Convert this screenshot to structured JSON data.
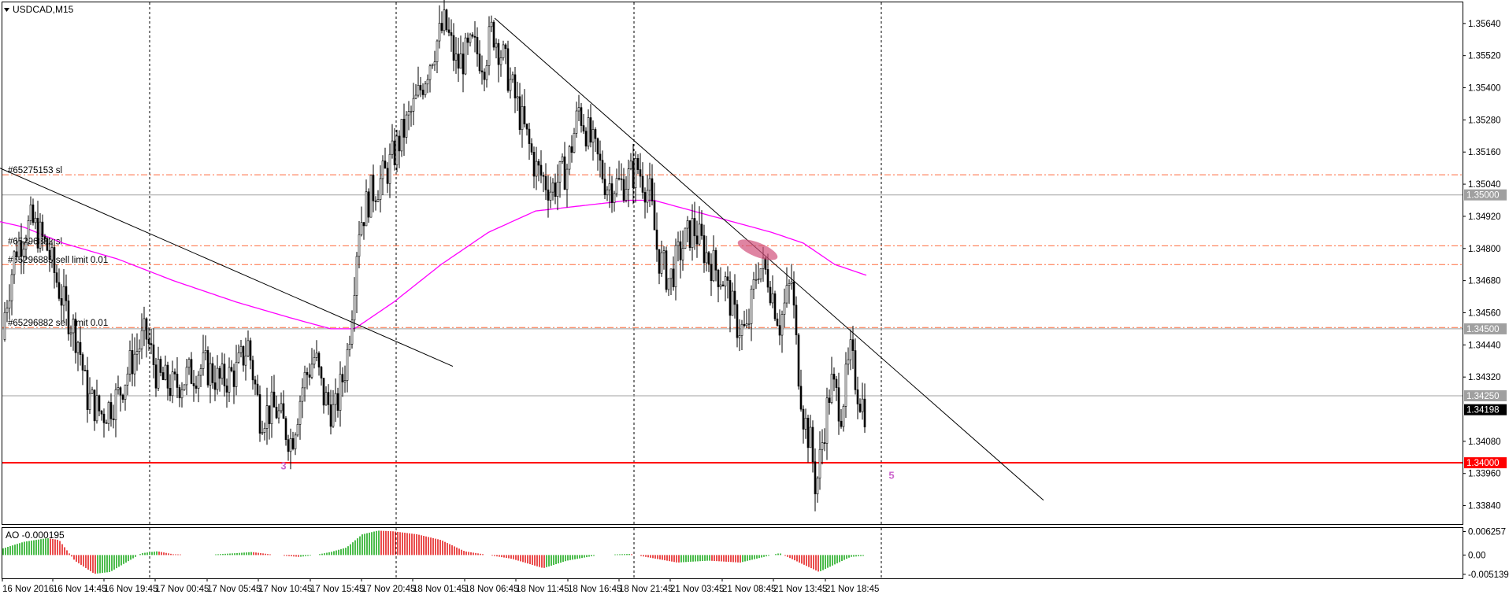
{
  "symbol_label": "USDCAD,M15",
  "indicator_label": "AO -0.000195",
  "colors": {
    "background": "#ffffff",
    "frame": "#000000",
    "grid": "#000000",
    "candle": "#000000",
    "ma": "#ff00ff",
    "order_line": "#ff6a3d",
    "level_line": "#a0a0a0",
    "support_line": "#ff0000",
    "price_box": "#000000",
    "level_box": "#a0a0a0",
    "support_box": "#ff0000",
    "ao_up": "#00a000",
    "ao_down": "#e00000",
    "wave_label": "#cc66cc",
    "highlight": "#d2507a"
  },
  "chart_data": {
    "type": "candlestick",
    "title": "USDCAD,M15",
    "ylim": [
      1.3378,
      1.3571
    ],
    "y_ticks": [
      "1.35640",
      "1.35520",
      "1.35400",
      "1.35280",
      "1.35160",
      "1.35040",
      "1.34920",
      "1.34800",
      "1.34680",
      "1.34560",
      "1.34440",
      "1.34320",
      "1.34080",
      "1.33960",
      "1.33840"
    ],
    "x_ticks": [
      "16 Nov 2016",
      "16 Nov 14:45",
      "16 Nov 19:45",
      "17 Nov 00:45",
      "17 Nov 05:45",
      "17 Nov 10:45",
      "17 Nov 15:45",
      "17 Nov 20:45",
      "18 Nov 01:45",
      "18 Nov 06:45",
      "18 Nov 11:45",
      "18 Nov 16:45",
      "18 Nov 21:45",
      "21 Nov 03:45",
      "21 Nov 08:45",
      "21 Nov 13:45",
      "21 Nov 18:45"
    ],
    "close_path": [
      [
        0,
        1.3446
      ],
      [
        20,
        1.348
      ],
      [
        40,
        1.349
      ],
      [
        60,
        1.348
      ],
      [
        80,
        1.346
      ],
      [
        100,
        1.3445
      ],
      [
        110,
        1.3425
      ],
      [
        130,
        1.3418
      ],
      [
        150,
        1.3425
      ],
      [
        170,
        1.344
      ],
      [
        185,
        1.3448
      ],
      [
        200,
        1.3432
      ],
      [
        220,
        1.3428
      ],
      [
        240,
        1.3433
      ],
      [
        260,
        1.3436
      ],
      [
        280,
        1.343
      ],
      [
        300,
        1.3434
      ],
      [
        315,
        1.3444
      ],
      [
        330,
        1.3418
      ],
      [
        350,
        1.342
      ],
      [
        370,
        1.3408
      ],
      [
        385,
        1.343
      ],
      [
        400,
        1.344
      ],
      [
        410,
        1.3425
      ],
      [
        425,
        1.3418
      ],
      [
        440,
        1.3438
      ],
      [
        448,
        1.3462
      ],
      [
        455,
        1.3488
      ],
      [
        470,
        1.35
      ],
      [
        490,
        1.3508
      ],
      [
        510,
        1.3522
      ],
      [
        530,
        1.3536
      ],
      [
        550,
        1.3554
      ],
      [
        565,
        1.3564
      ],
      [
        580,
        1.3548
      ],
      [
        600,
        1.3555
      ],
      [
        615,
        1.355
      ],
      [
        625,
        1.3562
      ],
      [
        640,
        1.355
      ],
      [
        660,
        1.353
      ],
      [
        680,
        1.351
      ],
      [
        700,
        1.3502
      ],
      [
        720,
        1.351
      ],
      [
        735,
        1.3532
      ],
      [
        750,
        1.352
      ],
      [
        770,
        1.3504
      ],
      [
        790,
        1.3504
      ],
      [
        810,
        1.351
      ],
      [
        825,
        1.35
      ],
      [
        835,
        1.3478
      ],
      [
        850,
        1.3468
      ],
      [
        865,
        1.348
      ],
      [
        880,
        1.3488
      ],
      [
        900,
        1.3476
      ],
      [
        920,
        1.3468
      ],
      [
        935,
        1.3452
      ],
      [
        948,
        1.3448
      ],
      [
        962,
        1.3474
      ],
      [
        975,
        1.347
      ],
      [
        990,
        1.3452
      ],
      [
        1005,
        1.3468
      ],
      [
        1012,
        1.344
      ],
      [
        1020,
        1.3418
      ],
      [
        1030,
        1.3406
      ],
      [
        1036,
        1.339
      ],
      [
        1045,
        1.341
      ],
      [
        1055,
        1.343
      ],
      [
        1068,
        1.342
      ],
      [
        1080,
        1.344
      ],
      [
        1090,
        1.3426
      ],
      [
        1098,
        1.342
      ]
    ],
    "ma_path": [
      [
        0,
        1.349
      ],
      [
        30,
        1.3488
      ],
      [
        80,
        1.3482
      ],
      [
        150,
        1.3476
      ],
      [
        220,
        1.3468
      ],
      [
        300,
        1.346
      ],
      [
        370,
        1.3454
      ],
      [
        420,
        1.345
      ],
      [
        450,
        1.345
      ],
      [
        500,
        1.346
      ],
      [
        560,
        1.3474
      ],
      [
        620,
        1.3486
      ],
      [
        680,
        1.3494
      ],
      [
        740,
        1.3496
      ],
      [
        800,
        1.3498
      ],
      [
        830,
        1.3498
      ],
      [
        880,
        1.3494
      ],
      [
        930,
        1.349
      ],
      [
        980,
        1.3486
      ],
      [
        1020,
        1.3482
      ],
      [
        1060,
        1.3474
      ],
      [
        1100,
        1.347
      ]
    ],
    "trendlines": [
      {
        "p1": [
          0,
          1.351
        ],
        "p2": [
          575,
          1.3436
        ]
      },
      {
        "p1": [
          628,
          1.3566
        ],
        "p2": [
          1325,
          1.3386
        ]
      }
    ],
    "horizontal_levels": [
      {
        "price": 1.35,
        "label": "1.35000",
        "kind": "level"
      },
      {
        "price": 1.345,
        "label": "1.34500",
        "kind": "level"
      },
      {
        "price": 1.3425,
        "label": "1.34250",
        "kind": "level"
      },
      {
        "price": 1.34,
        "label": "1.34000",
        "kind": "support"
      }
    ],
    "current_price": {
      "price": 1.34198,
      "label": "1.34198"
    },
    "order_lines": [
      {
        "price": 1.35075,
        "label": "#65275153 sl"
      },
      {
        "price": 1.3481,
        "label": "#65296882 sl"
      },
      {
        "price": 1.3474,
        "label": "#65296885 sell limit 0.01"
      },
      {
        "price": 1.34505,
        "label": "#65296882 sell limit 0.01"
      }
    ],
    "wave_labels": [
      {
        "x": 360,
        "price": 1.33975,
        "text": "3"
      },
      {
        "x": 1132,
        "price": 1.3394,
        "text": "5"
      }
    ],
    "highlight": {
      "x": 962,
      "price": 1.34795
    },
    "ao": {
      "label": "AO -0.000195",
      "ylim": [
        -0.0062,
        0.0072
      ],
      "y_ticks": [
        "0.006257",
        "0.00",
        "-0.005139"
      ],
      "path": [
        [
          0,
          0.0015
        ],
        [
          30,
          0.0035
        ],
        [
          60,
          0.0045
        ],
        [
          75,
          0.004
        ],
        [
          95,
          -0.0015
        ],
        [
          120,
          -0.005
        ],
        [
          140,
          -0.0045
        ],
        [
          160,
          -0.002
        ],
        [
          180,
          0.0005
        ],
        [
          200,
          0.001
        ],
        [
          220,
          0.0002
        ],
        [
          260,
          0.0
        ],
        [
          300,
          0.0005
        ],
        [
          320,
          0.0008
        ],
        [
          350,
          0.0
        ],
        [
          380,
          -0.0005
        ],
        [
          400,
          0.0
        ],
        [
          420,
          0.0008
        ],
        [
          440,
          0.002
        ],
        [
          460,
          0.0055
        ],
        [
          480,
          0.0065
        ],
        [
          500,
          0.0063
        ],
        [
          530,
          0.0055
        ],
        [
          560,
          0.004
        ],
        [
          590,
          0.001
        ],
        [
          620,
          0.0
        ],
        [
          650,
          -0.001
        ],
        [
          690,
          -0.0035
        ],
        [
          720,
          -0.0015
        ],
        [
          760,
          0.0
        ],
        [
          800,
          0.0003
        ],
        [
          820,
          -0.0005
        ],
        [
          860,
          -0.002
        ],
        [
          900,
          -0.0015
        ],
        [
          940,
          -0.002
        ],
        [
          960,
          -0.001
        ],
        [
          990,
          0.0005
        ],
        [
          1020,
          -0.0025
        ],
        [
          1040,
          -0.0045
        ],
        [
          1060,
          -0.0025
        ],
        [
          1080,
          -0.0005
        ],
        [
          1098,
          -0.0002
        ]
      ]
    }
  }
}
